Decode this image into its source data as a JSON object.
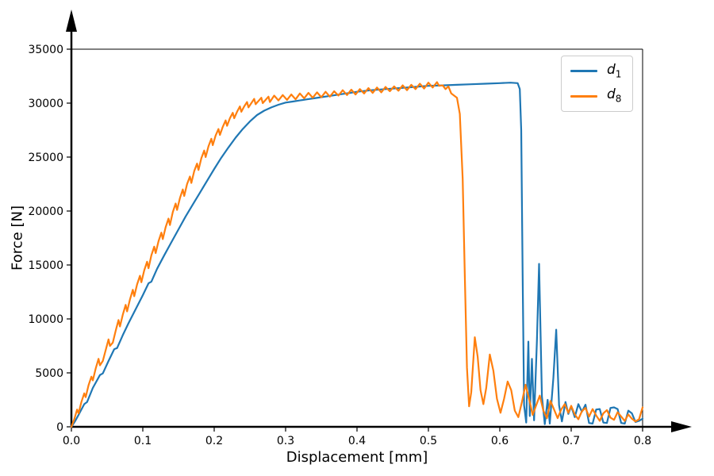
{
  "chart_data": {
    "type": "line",
    "title": "",
    "xlabel": "Displacement [mm]",
    "ylabel": "Force [N]",
    "xlim": [
      0,
      0.8
    ],
    "ylim": [
      0,
      35000
    ],
    "grid": false,
    "background": "#ffffff",
    "axis_color": "#000000",
    "axis_style": "arrows on x and y axes, thin top and right spines",
    "xticks": [
      0.0,
      0.1,
      0.2,
      0.3,
      0.4,
      0.5,
      0.6,
      0.7,
      0.8
    ],
    "xtick_labels": [
      "0.0",
      "0.1",
      "0.2",
      "0.3",
      "0.4",
      "0.5",
      "0.6",
      "0.7",
      "0.8"
    ],
    "yticks": [
      0,
      5000,
      10000,
      15000,
      20000,
      25000,
      30000,
      35000
    ],
    "ytick_labels": [
      "0",
      "5000",
      "10000",
      "15000",
      "20000",
      "25000",
      "30000",
      "35000"
    ],
    "legend": {
      "position": "upper right",
      "entries": [
        {
          "id": "d1",
          "base": "d",
          "sub": "1",
          "color": "#1f77b4"
        },
        {
          "id": "d8",
          "base": "d",
          "sub": "8",
          "color": "#ff7f0e"
        }
      ]
    },
    "series": [
      {
        "id": "d1",
        "name": "d_1",
        "color": "#1f77b4",
        "points": [
          [
            0.0,
            0
          ],
          [
            0.005,
            500
          ],
          [
            0.01,
            1100
          ],
          [
            0.018,
            2100
          ],
          [
            0.022,
            2300
          ],
          [
            0.03,
            3600
          ],
          [
            0.04,
            4800
          ],
          [
            0.044,
            4950
          ],
          [
            0.052,
            6100
          ],
          [
            0.06,
            7200
          ],
          [
            0.064,
            7300
          ],
          [
            0.072,
            8500
          ],
          [
            0.08,
            9600
          ],
          [
            0.09,
            10900
          ],
          [
            0.1,
            12200
          ],
          [
            0.108,
            13300
          ],
          [
            0.112,
            13450
          ],
          [
            0.12,
            14650
          ],
          [
            0.13,
            15900
          ],
          [
            0.14,
            17100
          ],
          [
            0.15,
            18300
          ],
          [
            0.16,
            19500
          ],
          [
            0.17,
            20600
          ],
          [
            0.18,
            21700
          ],
          [
            0.19,
            22800
          ],
          [
            0.2,
            23900
          ],
          [
            0.21,
            24950
          ],
          [
            0.22,
            25900
          ],
          [
            0.23,
            26800
          ],
          [
            0.24,
            27600
          ],
          [
            0.25,
            28300
          ],
          [
            0.26,
            28900
          ],
          [
            0.27,
            29300
          ],
          [
            0.28,
            29600
          ],
          [
            0.29,
            29850
          ],
          [
            0.3,
            30050
          ],
          [
            0.31,
            30150
          ],
          [
            0.32,
            30250
          ],
          [
            0.33,
            30350
          ],
          [
            0.34,
            30450
          ],
          [
            0.35,
            30550
          ],
          [
            0.36,
            30650
          ],
          [
            0.37,
            30750
          ],
          [
            0.38,
            30850
          ],
          [
            0.39,
            30950
          ],
          [
            0.4,
            31050
          ],
          [
            0.42,
            31200
          ],
          [
            0.44,
            31300
          ],
          [
            0.46,
            31400
          ],
          [
            0.48,
            31500
          ],
          [
            0.5,
            31600
          ],
          [
            0.52,
            31650
          ],
          [
            0.54,
            31700
          ],
          [
            0.56,
            31750
          ],
          [
            0.58,
            31800
          ],
          [
            0.6,
            31850
          ],
          [
            0.615,
            31900
          ],
          [
            0.625,
            31850
          ],
          [
            0.628,
            31300
          ],
          [
            0.63,
            27500
          ],
          [
            0.632,
            14000
          ],
          [
            0.634,
            2000
          ],
          [
            0.637,
            400
          ],
          [
            0.64,
            7900
          ],
          [
            0.642,
            1000
          ],
          [
            0.645,
            6300
          ],
          [
            0.648,
            600
          ],
          [
            0.652,
            8000
          ],
          [
            0.655,
            15100
          ],
          [
            0.659,
            2800
          ],
          [
            0.663,
            250
          ],
          [
            0.667,
            2500
          ],
          [
            0.67,
            300
          ],
          [
            0.675,
            4500
          ],
          [
            0.679,
            9000
          ],
          [
            0.683,
            2000
          ],
          [
            0.687,
            500
          ],
          [
            0.692,
            2300
          ],
          [
            0.696,
            1200
          ],
          [
            0.7,
            1900
          ],
          [
            0.705,
            900
          ],
          [
            0.71,
            2100
          ],
          [
            0.715,
            1400
          ],
          [
            0.72,
            2050
          ],
          [
            0.725,
            350
          ],
          [
            0.73,
            300
          ],
          [
            0.735,
            1600
          ],
          [
            0.74,
            1650
          ],
          [
            0.745,
            400
          ],
          [
            0.75,
            350
          ],
          [
            0.755,
            1750
          ],
          [
            0.76,
            1800
          ],
          [
            0.765,
            1650
          ],
          [
            0.77,
            350
          ],
          [
            0.775,
            300
          ],
          [
            0.78,
            1500
          ],
          [
            0.785,
            1250
          ],
          [
            0.79,
            450
          ],
          [
            0.795,
            550
          ],
          [
            0.8,
            750
          ]
        ]
      },
      {
        "id": "d8",
        "name": "d_8",
        "color": "#ff7f0e",
        "points": [
          [
            0.0,
            0
          ],
          [
            0.004,
            700
          ],
          [
            0.008,
            1600
          ],
          [
            0.01,
            1250
          ],
          [
            0.014,
            2300
          ],
          [
            0.018,
            3100
          ],
          [
            0.02,
            2750
          ],
          [
            0.024,
            3850
          ],
          [
            0.028,
            4650
          ],
          [
            0.03,
            4300
          ],
          [
            0.034,
            5400
          ],
          [
            0.038,
            6300
          ],
          [
            0.04,
            5700
          ],
          [
            0.044,
            6100
          ],
          [
            0.048,
            7100
          ],
          [
            0.052,
            8100
          ],
          [
            0.054,
            7500
          ],
          [
            0.058,
            7800
          ],
          [
            0.062,
            8900
          ],
          [
            0.066,
            9900
          ],
          [
            0.068,
            9300
          ],
          [
            0.072,
            10400
          ],
          [
            0.076,
            11300
          ],
          [
            0.078,
            10700
          ],
          [
            0.082,
            11800
          ],
          [
            0.086,
            12700
          ],
          [
            0.088,
            12100
          ],
          [
            0.092,
            13200
          ],
          [
            0.096,
            14000
          ],
          [
            0.098,
            13400
          ],
          [
            0.102,
            14500
          ],
          [
            0.106,
            15300
          ],
          [
            0.108,
            14700
          ],
          [
            0.112,
            15900
          ],
          [
            0.116,
            16700
          ],
          [
            0.118,
            16100
          ],
          [
            0.122,
            17200
          ],
          [
            0.126,
            18000
          ],
          [
            0.128,
            17400
          ],
          [
            0.132,
            18500
          ],
          [
            0.136,
            19300
          ],
          [
            0.138,
            18700
          ],
          [
            0.142,
            19900
          ],
          [
            0.146,
            20700
          ],
          [
            0.148,
            20100
          ],
          [
            0.152,
            21200
          ],
          [
            0.156,
            22000
          ],
          [
            0.158,
            21400
          ],
          [
            0.162,
            22500
          ],
          [
            0.166,
            23200
          ],
          [
            0.168,
            22600
          ],
          [
            0.172,
            23700
          ],
          [
            0.176,
            24400
          ],
          [
            0.178,
            23800
          ],
          [
            0.182,
            24900
          ],
          [
            0.186,
            25600
          ],
          [
            0.188,
            25000
          ],
          [
            0.192,
            26000
          ],
          [
            0.196,
            26700
          ],
          [
            0.198,
            26100
          ],
          [
            0.202,
            27000
          ],
          [
            0.206,
            27600
          ],
          [
            0.208,
            27050
          ],
          [
            0.212,
            27800
          ],
          [
            0.216,
            28400
          ],
          [
            0.218,
            27900
          ],
          [
            0.222,
            28600
          ],
          [
            0.226,
            29100
          ],
          [
            0.228,
            28600
          ],
          [
            0.232,
            29200
          ],
          [
            0.236,
            29700
          ],
          [
            0.238,
            29200
          ],
          [
            0.242,
            29700
          ],
          [
            0.246,
            30100
          ],
          [
            0.248,
            29600
          ],
          [
            0.252,
            30000
          ],
          [
            0.256,
            30400
          ],
          [
            0.258,
            29900
          ],
          [
            0.262,
            30200
          ],
          [
            0.266,
            30500
          ],
          [
            0.268,
            30000
          ],
          [
            0.272,
            30300
          ],
          [
            0.276,
            30600
          ],
          [
            0.278,
            30100
          ],
          [
            0.284,
            30700
          ],
          [
            0.29,
            30250
          ],
          [
            0.296,
            30750
          ],
          [
            0.302,
            30300
          ],
          [
            0.308,
            30800
          ],
          [
            0.314,
            30350
          ],
          [
            0.32,
            30900
          ],
          [
            0.326,
            30450
          ],
          [
            0.332,
            30950
          ],
          [
            0.338,
            30500
          ],
          [
            0.344,
            31000
          ],
          [
            0.35,
            30550
          ],
          [
            0.356,
            31050
          ],
          [
            0.362,
            30600
          ],
          [
            0.368,
            31100
          ],
          [
            0.374,
            30700
          ],
          [
            0.38,
            31200
          ],
          [
            0.386,
            30750
          ],
          [
            0.392,
            31250
          ],
          [
            0.398,
            30800
          ],
          [
            0.404,
            31300
          ],
          [
            0.41,
            30900
          ],
          [
            0.416,
            31400
          ],
          [
            0.422,
            30950
          ],
          [
            0.428,
            31450
          ],
          [
            0.434,
            31000
          ],
          [
            0.44,
            31500
          ],
          [
            0.446,
            31100
          ],
          [
            0.452,
            31550
          ],
          [
            0.458,
            31150
          ],
          [
            0.464,
            31650
          ],
          [
            0.47,
            31200
          ],
          [
            0.476,
            31700
          ],
          [
            0.482,
            31300
          ],
          [
            0.488,
            31800
          ],
          [
            0.494,
            31350
          ],
          [
            0.5,
            31900
          ],
          [
            0.506,
            31450
          ],
          [
            0.512,
            31950
          ],
          [
            0.515,
            31600
          ],
          [
            0.52,
            31650
          ],
          [
            0.524,
            31300
          ],
          [
            0.528,
            31550
          ],
          [
            0.532,
            30900
          ],
          [
            0.536,
            30700
          ],
          [
            0.54,
            30500
          ],
          [
            0.544,
            29000
          ],
          [
            0.548,
            23000
          ],
          [
            0.551,
            14000
          ],
          [
            0.554,
            5500
          ],
          [
            0.557,
            1900
          ],
          [
            0.56,
            3200
          ],
          [
            0.565,
            8300
          ],
          [
            0.569,
            6500
          ],
          [
            0.573,
            3400
          ],
          [
            0.577,
            2100
          ],
          [
            0.581,
            3600
          ],
          [
            0.586,
            6700
          ],
          [
            0.591,
            5200
          ],
          [
            0.596,
            2600
          ],
          [
            0.601,
            1300
          ],
          [
            0.606,
            2600
          ],
          [
            0.611,
            4200
          ],
          [
            0.616,
            3400
          ],
          [
            0.621,
            1500
          ],
          [
            0.626,
            900
          ],
          [
            0.631,
            2300
          ],
          [
            0.636,
            3900
          ],
          [
            0.641,
            2600
          ],
          [
            0.646,
            1100
          ],
          [
            0.651,
            2000
          ],
          [
            0.656,
            2900
          ],
          [
            0.661,
            1500
          ],
          [
            0.666,
            800
          ],
          [
            0.671,
            2400
          ],
          [
            0.676,
            1600
          ],
          [
            0.681,
            800
          ],
          [
            0.686,
            1600
          ],
          [
            0.691,
            2100
          ],
          [
            0.696,
            1300
          ],
          [
            0.7,
            1950
          ],
          [
            0.705,
            1150
          ],
          [
            0.71,
            700
          ],
          [
            0.715,
            1450
          ],
          [
            0.72,
            1750
          ],
          [
            0.725,
            950
          ],
          [
            0.73,
            1650
          ],
          [
            0.735,
            1050
          ],
          [
            0.74,
            550
          ],
          [
            0.745,
            1250
          ],
          [
            0.75,
            1550
          ],
          [
            0.755,
            850
          ],
          [
            0.76,
            650
          ],
          [
            0.765,
            1350
          ],
          [
            0.77,
            950
          ],
          [
            0.775,
            550
          ],
          [
            0.78,
            1150
          ],
          [
            0.785,
            750
          ],
          [
            0.79,
            500
          ],
          [
            0.795,
            700
          ],
          [
            0.8,
            1800
          ]
        ]
      }
    ]
  }
}
